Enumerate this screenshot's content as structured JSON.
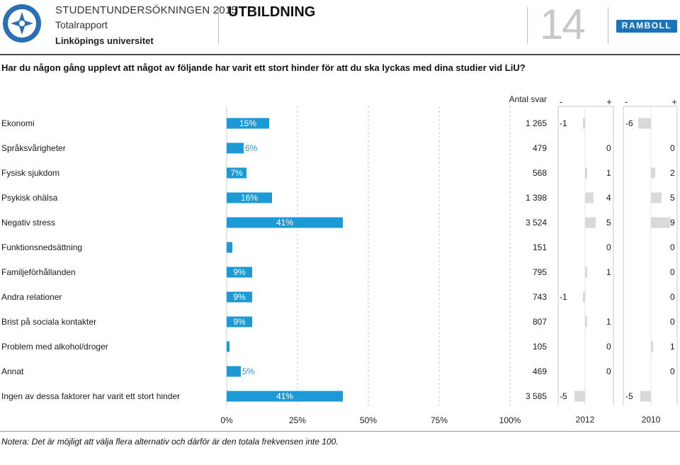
{
  "header": {
    "title": "STUDENTUNDERSÖKNINGEN 2015",
    "subtitle": "Totalrapport",
    "university": "Linköpings universitet",
    "section": "UTBILDNING",
    "page_number": "14",
    "brand": "RAMBOLL"
  },
  "question": "Har du någon gång upplevt att något av följande har varit ett stort hinder för att du ska lyckas med dina studier vid LiU?",
  "footnote": "Notera: Det är möjligt att välja flera alternativ och därför är den totala frekvensen inte 100.",
  "colors": {
    "bar": "#1b9ad6",
    "diff": "#d9d9d9",
    "label_on_bar": "#ffffff",
    "label_off_bar": "#1b9ad6"
  },
  "chart_data": {
    "type": "bar",
    "orientation": "horizontal",
    "xlim": [
      0,
      100
    ],
    "x_ticks": [
      "0%",
      "25%",
      "50%",
      "75%",
      "100%"
    ],
    "count_header": "Antal svar",
    "diff_headers": [
      "-",
      "+",
      "-",
      "+"
    ],
    "diff_years": [
      "2012",
      "2010"
    ],
    "categories": [
      "Ekonomi",
      "Språksvårigheter",
      "Fysisk sjukdom",
      "Psykisk ohälsa",
      "Negativ stress",
      "Funktionsnedsättning",
      "Familjeförhållanden",
      "Andra relationer",
      "Brist på sociala kontakter",
      "Problem med alkohol/droger",
      "Annat",
      "Ingen av dessa faktorer har varit ett stort hinder"
    ],
    "values": [
      15,
      6,
      7,
      16,
      41,
      2,
      9,
      9,
      9,
      1,
      5,
      41
    ],
    "value_labels": [
      "15%",
      "6%",
      "7%",
      "16%",
      "41%",
      "",
      "9%",
      "9%",
      "9%",
      "",
      "5%",
      "41%"
    ],
    "counts": [
      "1 265",
      "479",
      "568",
      "1 398",
      "3 524",
      "151",
      "795",
      "743",
      "807",
      "105",
      "469",
      "3 585"
    ],
    "diff_2012": [
      -1,
      0,
      1,
      4,
      5,
      0,
      1,
      -1,
      1,
      0,
      0,
      -5
    ],
    "diff_2010": [
      -6,
      0,
      2,
      5,
      9,
      0,
      0,
      0,
      0,
      1,
      0,
      -5
    ]
  }
}
